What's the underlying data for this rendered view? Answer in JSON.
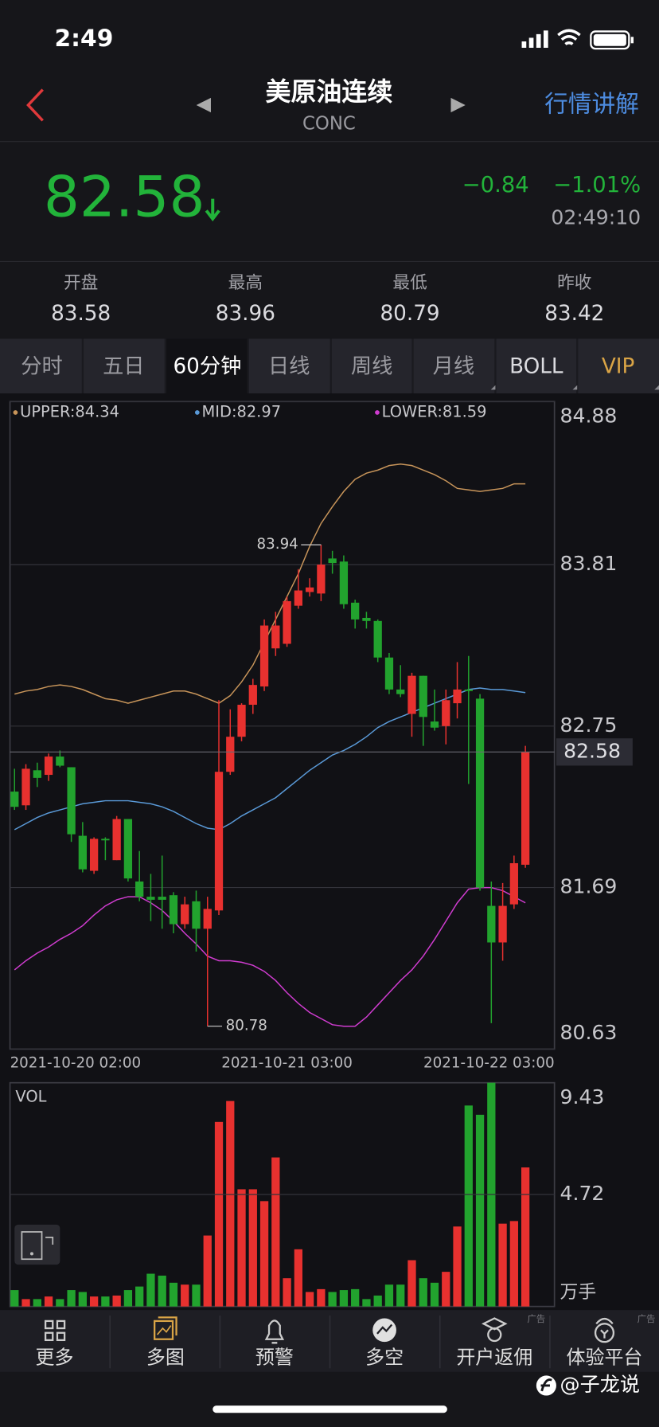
{
  "status": {
    "time": "2:49"
  },
  "header": {
    "title": "美原油连续",
    "code": "CONC",
    "link": "行情讲解"
  },
  "quote": {
    "price": "82.58",
    "change": "−0.84",
    "percent": "−1.01%",
    "time": "02:49:10"
  },
  "stats": [
    {
      "label": "开盘",
      "value": "83.58"
    },
    {
      "label": "最高",
      "value": "83.96"
    },
    {
      "label": "最低",
      "value": "80.79"
    },
    {
      "label": "昨收",
      "value": "83.42"
    }
  ],
  "tabs": [
    "分时",
    "五日",
    "60分钟",
    "日线",
    "周线",
    "月线",
    "BOLL",
    "VIP"
  ],
  "chart_data": {
    "type": "candlestick",
    "categories": [
      "2021-10-20 02:00",
      null,
      null,
      null,
      null,
      null,
      null,
      null,
      null,
      null,
      null,
      null,
      null,
      null,
      null,
      null,
      null,
      null,
      null,
      null,
      null,
      null,
      null,
      null,
      "2021-10-21 03:00",
      null,
      null,
      null,
      null,
      null,
      null,
      null,
      null,
      null,
      null,
      null,
      null,
      null,
      null,
      null,
      null,
      null,
      null,
      null,
      null,
      "2021-10-22 03:00"
    ],
    "open": [
      82.32,
      82.23,
      82.46,
      82.43,
      82.55,
      82.48,
      82.03,
      81.8,
      82.01,
      81.87,
      82.14,
      81.73,
      81.63,
      81.63,
      81.64,
      81.45,
      81.6,
      81.42,
      81.54,
      82.45,
      82.68,
      82.89,
      83.01,
      83.26,
      83.29,
      83.54,
      83.63,
      83.62,
      83.85,
      83.83,
      83.56,
      83.46,
      83.44,
      83.2,
      82.99,
      82.83,
      83.08,
      82.78,
      82.75,
      82.9,
      82.99,
      82.93,
      81.57,
      81.33,
      81.58,
      81.84
    ],
    "high": [
      82.47,
      82.5,
      82.51,
      82.57,
      82.59,
      82.48,
      82.12,
      82.02,
      82.02,
      82.16,
      82.14,
      81.93,
      81.78,
      81.9,
      81.66,
      81.63,
      81.67,
      81.63,
      82.92,
      82.86,
      82.9,
      83.06,
      83.45,
      83.5,
      83.6,
      83.78,
      83.72,
      83.94,
      83.9,
      83.87,
      83.58,
      83.5,
      83.45,
      83.23,
      83.15,
      83.1,
      83.08,
      82.99,
      82.99,
      83.17,
      83.21,
      82.96,
      81.73,
      81.72,
      81.9,
      82.62
    ],
    "low": [
      82.2,
      82.2,
      82.35,
      82.39,
      82.48,
      81.99,
      81.79,
      81.78,
      81.87,
      81.87,
      81.73,
      81.6,
      81.47,
      81.42,
      81.39,
      81.42,
      81.27,
      80.78,
      81.51,
      82.43,
      82.65,
      82.83,
      82.98,
      83.21,
      83.27,
      83.52,
      83.6,
      83.57,
      83.75,
      83.52,
      83.39,
      83.39,
      83.17,
      82.96,
      82.94,
      82.68,
      82.62,
      82.72,
      82.63,
      82.8,
      82.37,
      81.67,
      80.8,
      81.21,
      81.55,
      81.82
    ],
    "close": [
      82.22,
      82.47,
      82.41,
      82.55,
      82.49,
      82.04,
      81.81,
      82.01,
      82.0,
      82.14,
      81.75,
      81.63,
      81.61,
      81.61,
      81.45,
      81.58,
      81.42,
      81.55,
      82.45,
      82.68,
      82.89,
      83.02,
      83.41,
      83.41,
      83.57,
      83.64,
      83.66,
      83.81,
      83.82,
      83.55,
      83.45,
      83.44,
      83.2,
      82.99,
      82.96,
      83.08,
      82.81,
      82.74,
      82.92,
      82.99,
      82.98,
      81.69,
      81.33,
      81.57,
      81.85,
      82.58
    ],
    "up_color": "#e8312f",
    "down_color": "#22a32e",
    "series": [
      {
        "name": "UPPER:84.34",
        "color": "#c8955a",
        "values": [
          82.96,
          82.98,
          82.99,
          83.01,
          83.02,
          83.01,
          82.99,
          82.96,
          82.93,
          82.92,
          82.9,
          82.92,
          82.94,
          82.96,
          82.98,
          82.98,
          82.96,
          82.93,
          82.9,
          82.95,
          83.04,
          83.15,
          83.3,
          83.45,
          83.6,
          83.75,
          83.93,
          84.08,
          84.19,
          84.29,
          84.37,
          84.41,
          84.43,
          84.46,
          84.47,
          84.46,
          84.43,
          84.4,
          84.36,
          84.31,
          84.3,
          84.29,
          84.3,
          84.31,
          84.34,
          84.34
        ]
      },
      {
        "name": "MID:82.97",
        "color": "#5a9ad8",
        "values": [
          82.07,
          82.11,
          82.15,
          82.18,
          82.2,
          82.22,
          82.24,
          82.25,
          82.26,
          82.26,
          82.26,
          82.25,
          82.24,
          82.22,
          82.19,
          82.15,
          82.11,
          82.08,
          82.07,
          82.11,
          82.16,
          82.2,
          82.24,
          82.28,
          82.34,
          82.4,
          82.46,
          82.51,
          82.56,
          82.59,
          82.63,
          82.68,
          82.74,
          82.78,
          82.81,
          82.84,
          82.87,
          82.9,
          82.93,
          82.96,
          82.99,
          83.0,
          82.99,
          82.99,
          82.98,
          82.97
        ]
      },
      {
        "name": "LOWER:81.59",
        "color": "#d03cd0",
        "values": [
          81.15,
          81.21,
          81.26,
          81.3,
          81.35,
          81.39,
          81.44,
          81.51,
          81.57,
          81.61,
          81.63,
          81.63,
          81.59,
          81.54,
          81.47,
          81.39,
          81.32,
          81.24,
          81.21,
          81.21,
          81.2,
          81.18,
          81.14,
          81.08,
          81.0,
          80.93,
          80.87,
          80.83,
          80.79,
          80.78,
          80.78,
          80.84,
          80.92,
          81.0,
          81.08,
          81.15,
          81.24,
          81.35,
          81.47,
          81.59,
          81.68,
          81.69,
          81.69,
          81.67,
          81.63,
          81.59
        ]
      }
    ],
    "ylim": [
      80.63,
      84.88
    ],
    "yticks": [
      84.88,
      83.81,
      82.75,
      81.69,
      80.63
    ],
    "grid": true,
    "volume": {
      "label": "VOL",
      "unit": "万手",
      "values": [
        0.69,
        0.31,
        0.31,
        0.42,
        0.31,
        0.69,
        0.61,
        0.42,
        0.42,
        0.46,
        0.69,
        0.84,
        1.38,
        1.3,
        1.0,
        0.92,
        0.92,
        2.99,
        7.78,
        8.66,
        4.94,
        4.94,
        4.44,
        6.28,
        1.19,
        2.41,
        0.61,
        0.73,
        0.61,
        0.69,
        0.73,
        0.31,
        0.46,
        0.92,
        0.92,
        1.95,
        1.19,
        1.0,
        1.46,
        3.37,
        8.47,
        8.08,
        9.43,
        3.49,
        3.6,
        5.86
      ],
      "ylim": [
        0,
        9.43
      ],
      "yticks": [
        9.43,
        4.72
      ]
    }
  },
  "bottom_nav": [
    {
      "label": "更多"
    },
    {
      "label": "多图"
    },
    {
      "label": "预警"
    },
    {
      "label": "多空"
    },
    {
      "label": "开户返佣",
      "ad": "广告"
    },
    {
      "label": "体验平台",
      "ad": "广告"
    }
  ],
  "watermark": "@子龙说"
}
